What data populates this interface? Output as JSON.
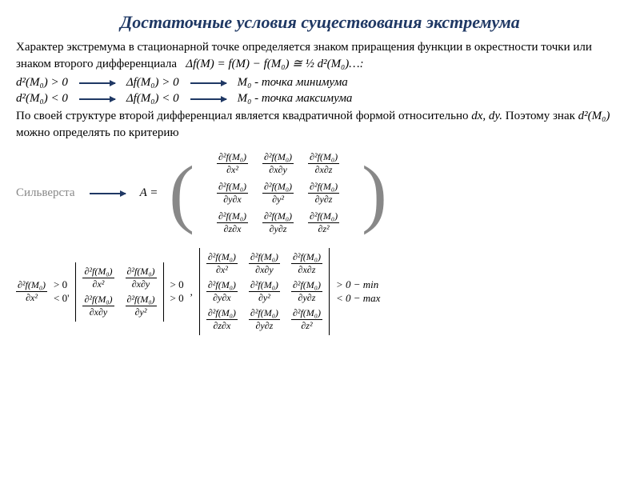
{
  "title": "Достаточные условия существования экстремума",
  "p1": "Характер экстремума в стационарной точке определяется знаком приращения функции в окрестности точки или знаком второго дифференциала",
  "eq1": "Δf(M) = f(M) − f(M₀) ≅ ½ d²(M₀)…:",
  "cond1_a": "d²(M₀) > 0",
  "cond1_b": "Δf(M₀) >  0",
  "cond1_c": "M₀  - точка минимума",
  "cond2_a": "d²(M₀) < 0",
  "cond2_b": "Δf(M₀) < 0",
  "cond2_c": "M₀  -  точка максимума",
  "p2a": "По своей структуре  второй дифференциал является квадратичной формой относительно ",
  "p2b": "dx,  dy.",
  "p2c": " Поэтому знак  ",
  "p2d": "d²(M₀)",
  "p2e": " можно определять по критерию",
  "sylv": "Сильверста",
  "Aeq": "A =",
  "numтор": "∂²f(M₀)",
  "dxx": "∂x²",
  "dxy": "∂x∂y",
  "dxz": "∂x∂z",
  "dyx": "∂y∂x",
  "dyy": "∂y²",
  "dyz": "∂y∂z",
  "dzx": "∂z∂x",
  "dzy": "∂y∂z",
  "dzz": "∂z²",
  "m1_top": "∂²f(M₀)",
  "m1_bot": "∂x²",
  "gt0": "> 0",
  "lt0p": "< 0'",
  "gt0c1": "> 0",
  "gt0c2": "> 0",
  "comma": ",",
  "minmax1": "> 0 − min",
  "minmax2": "< 0 − max",
  "colors": {
    "title": "#1f3864",
    "arrow": "#1f3864",
    "gray": "#888888",
    "text": "#000000",
    "bg": "#ffffff"
  }
}
